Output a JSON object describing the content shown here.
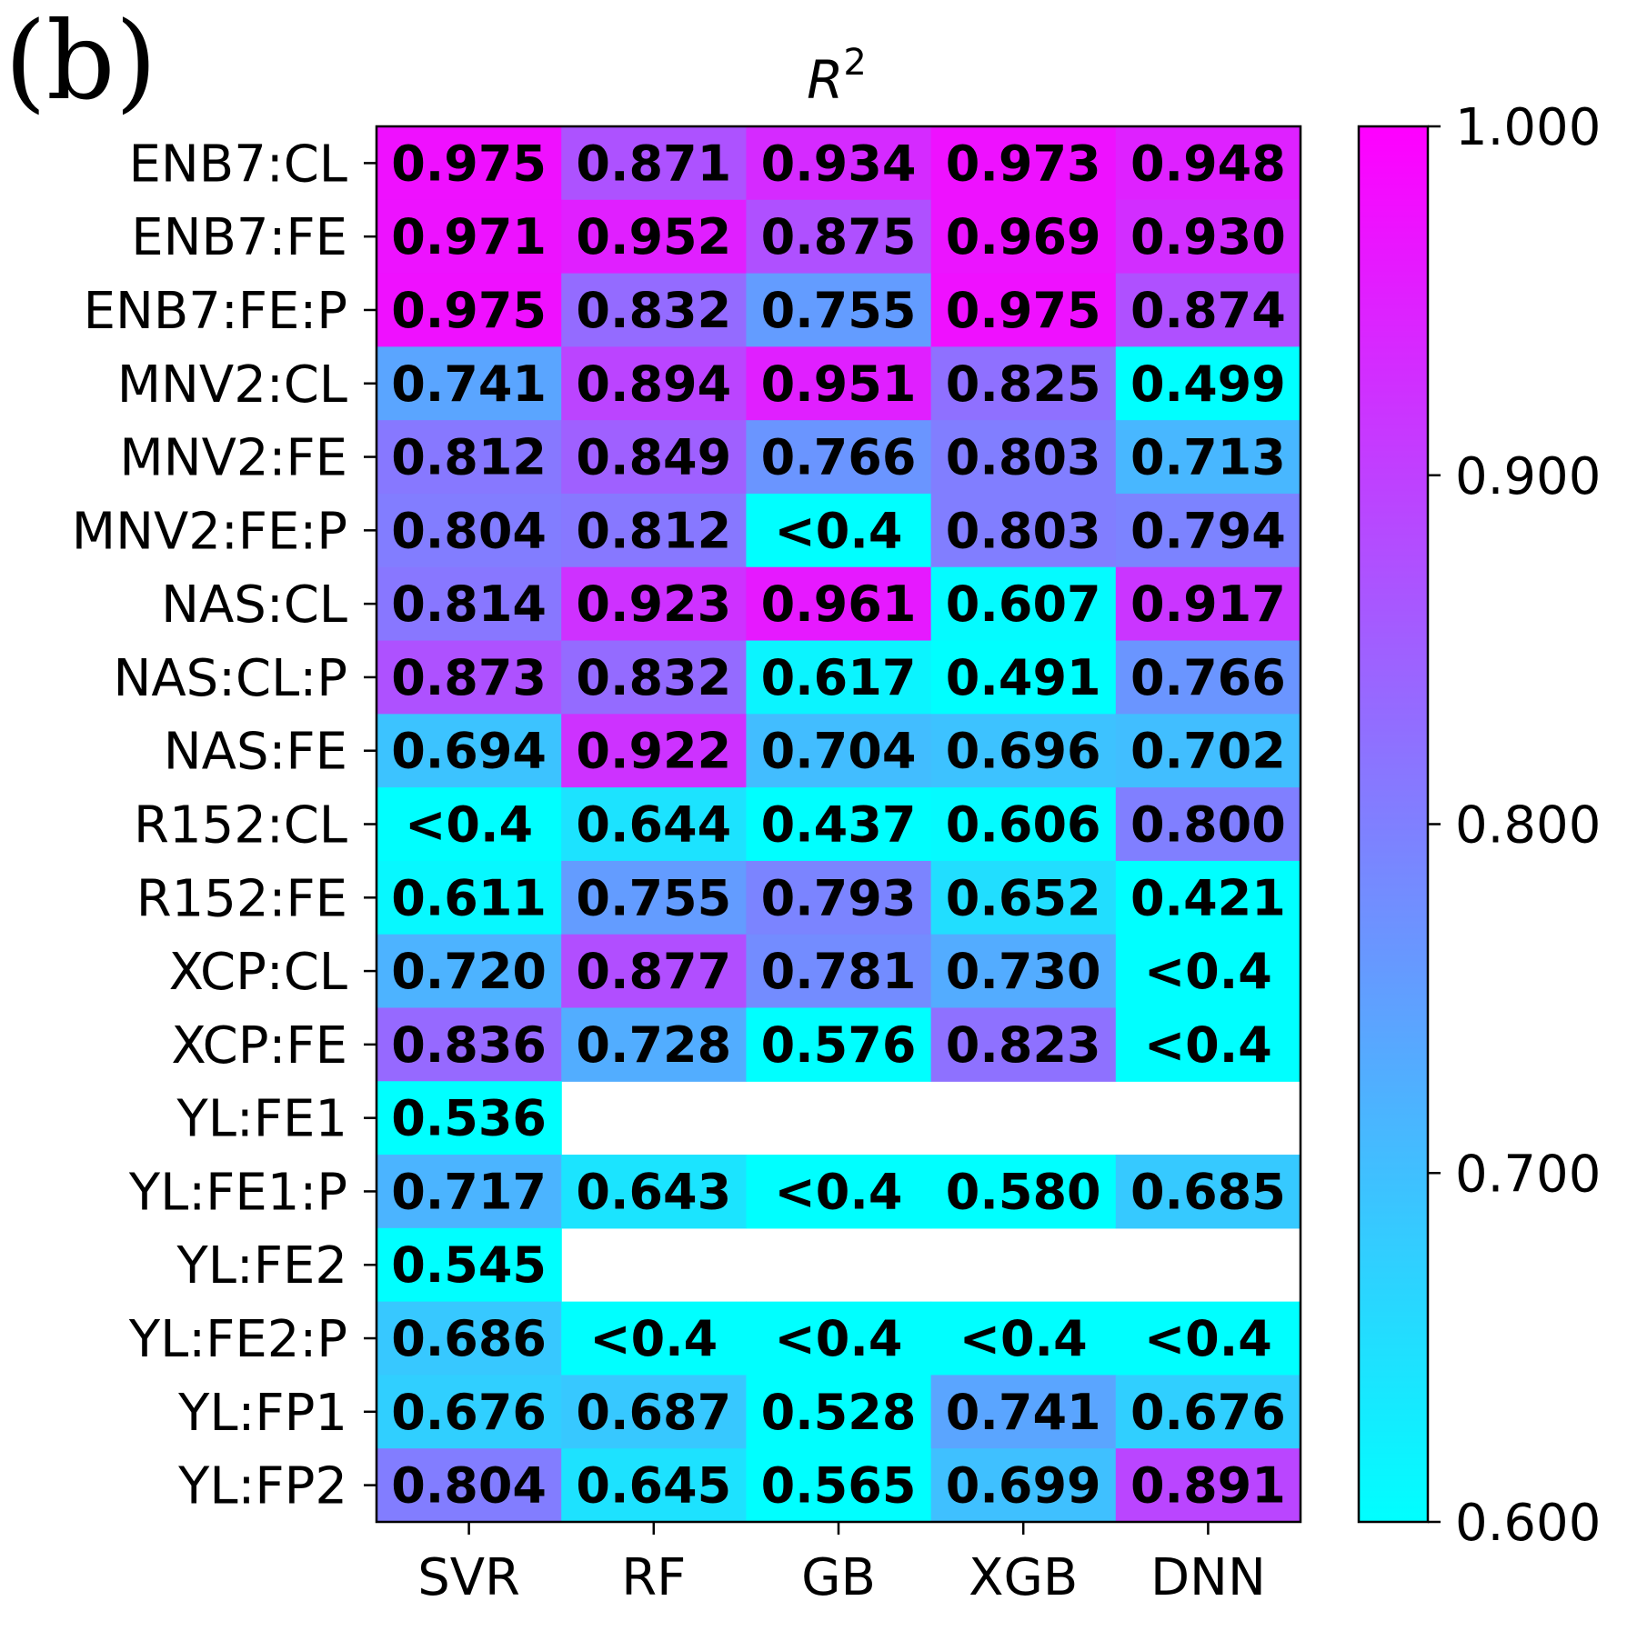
{
  "chart_data": {
    "type": "heatmap",
    "panel_label": "(b)",
    "title": "R",
    "title_superscript": "2",
    "columns": [
      "SVR",
      "RF",
      "GB",
      "XGB",
      "DNN"
    ],
    "rows": [
      {
        "label": "ENB7:CL",
        "values": [
          0.975,
          0.871,
          0.934,
          0.973,
          0.948
        ],
        "text": [
          "0.975",
          "0.871",
          "0.934",
          "0.973",
          "0.948"
        ]
      },
      {
        "label": "ENB7:FE",
        "values": [
          0.971,
          0.952,
          0.875,
          0.969,
          0.93
        ],
        "text": [
          "0.971",
          "0.952",
          "0.875",
          "0.969",
          "0.930"
        ]
      },
      {
        "label": "ENB7:FE:P",
        "values": [
          0.975,
          0.832,
          0.755,
          0.975,
          0.874
        ],
        "text": [
          "0.975",
          "0.832",
          "0.755",
          "0.975",
          "0.874"
        ]
      },
      {
        "label": "MNV2:CL",
        "values": [
          0.741,
          0.894,
          0.951,
          0.825,
          0.499
        ],
        "text": [
          "0.741",
          "0.894",
          "0.951",
          "0.825",
          "0.499"
        ]
      },
      {
        "label": "MNV2:FE",
        "values": [
          0.812,
          0.849,
          0.766,
          0.803,
          0.713
        ],
        "text": [
          "0.812",
          "0.849",
          "0.766",
          "0.803",
          "0.713"
        ]
      },
      {
        "label": "MNV2:FE:P",
        "values": [
          0.804,
          0.812,
          0.4,
          0.803,
          0.794
        ],
        "text": [
          "0.804",
          "0.812",
          "<0.4",
          "0.803",
          "0.794"
        ]
      },
      {
        "label": "NAS:CL",
        "values": [
          0.814,
          0.923,
          0.961,
          0.607,
          0.917
        ],
        "text": [
          "0.814",
          "0.923",
          "0.961",
          "0.607",
          "0.917"
        ]
      },
      {
        "label": "NAS:CL:P",
        "values": [
          0.873,
          0.832,
          0.617,
          0.491,
          0.766
        ],
        "text": [
          "0.873",
          "0.832",
          "0.617",
          "0.491",
          "0.766"
        ]
      },
      {
        "label": "NAS:FE",
        "values": [
          0.694,
          0.922,
          0.704,
          0.696,
          0.702
        ],
        "text": [
          "0.694",
          "0.922",
          "0.704",
          "0.696",
          "0.702"
        ]
      },
      {
        "label": "R152:CL",
        "values": [
          0.4,
          0.644,
          0.437,
          0.606,
          0.8
        ],
        "text": [
          "<0.4",
          "0.644",
          "0.437",
          "0.606",
          "0.800"
        ]
      },
      {
        "label": "R152:FE",
        "values": [
          0.611,
          0.755,
          0.793,
          0.652,
          0.421
        ],
        "text": [
          "0.611",
          "0.755",
          "0.793",
          "0.652",
          "0.421"
        ]
      },
      {
        "label": "XCP:CL",
        "values": [
          0.72,
          0.877,
          0.781,
          0.73,
          0.4
        ],
        "text": [
          "0.720",
          "0.877",
          "0.781",
          "0.730",
          "<0.4"
        ]
      },
      {
        "label": "XCP:FE",
        "values": [
          0.836,
          0.728,
          0.576,
          0.823,
          0.4
        ],
        "text": [
          "0.836",
          "0.728",
          "0.576",
          "0.823",
          "<0.4"
        ]
      },
      {
        "label": "YL:FE1",
        "values": [
          0.536,
          null,
          null,
          null,
          null
        ],
        "text": [
          "0.536",
          "",
          "",
          "",
          ""
        ]
      },
      {
        "label": "YL:FE1:P",
        "values": [
          0.717,
          0.643,
          0.4,
          0.58,
          0.685
        ],
        "text": [
          "0.717",
          "0.643",
          "<0.4",
          "0.580",
          "0.685"
        ]
      },
      {
        "label": "YL:FE2",
        "values": [
          0.545,
          null,
          null,
          null,
          null
        ],
        "text": [
          "0.545",
          "",
          "",
          "",
          ""
        ]
      },
      {
        "label": "YL:FE2:P",
        "values": [
          0.686,
          0.4,
          0.4,
          0.4,
          0.4
        ],
        "text": [
          "0.686",
          "<0.4",
          "<0.4",
          "<0.4",
          "<0.4"
        ]
      },
      {
        "label": "YL:FP1",
        "values": [
          0.676,
          0.687,
          0.528,
          0.741,
          0.676
        ],
        "text": [
          "0.676",
          "0.687",
          "0.528",
          "0.741",
          "0.676"
        ]
      },
      {
        "label": "YL:FP2",
        "values": [
          0.804,
          0.645,
          0.565,
          0.699,
          0.891
        ],
        "text": [
          "0.804",
          "0.645",
          "0.565",
          "0.699",
          "0.891"
        ]
      }
    ],
    "colorbar": {
      "vmin": 0.6,
      "vmax": 1.0,
      "ticks": [
        1.0,
        0.9,
        0.8,
        0.7,
        0.6
      ],
      "tick_labels": [
        "1.000",
        "0.900",
        "0.800",
        "0.700",
        "0.600"
      ],
      "colormap": "cool",
      "color_low": "#00ffff",
      "color_high": "#ff00ff"
    },
    "grid": false,
    "legend": "colorbar-right"
  }
}
